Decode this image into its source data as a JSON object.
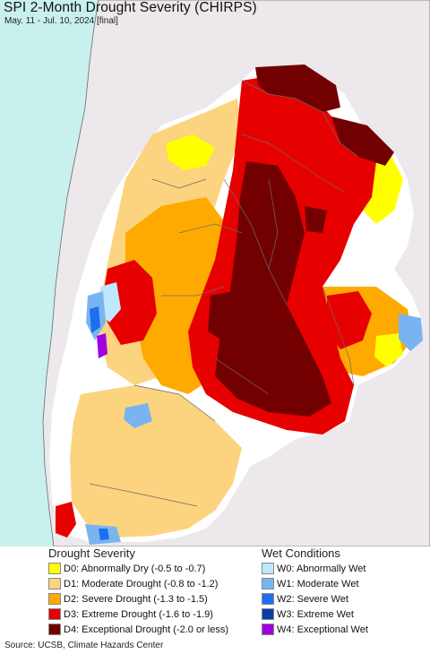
{
  "map": {
    "title": "SPI 2-Month Drought Severity (CHIRPS)",
    "subtitle": "May. 11 - Jul. 10, 2024 [final]",
    "colors": {
      "ocean": "#c8f0ec",
      "land_outside": "#ece8ec",
      "no_data": "#ffffff",
      "border": "#6b6b6b"
    }
  },
  "legend": {
    "drought": {
      "heading": "Drought Severity",
      "items": [
        {
          "label": "D0: Abnormally Dry (-0.5 to -0.7)",
          "color": "#ffff00"
        },
        {
          "label": "D1: Moderate Drought (-0.8 to -1.2)",
          "color": "#fcd37f"
        },
        {
          "label": "D2: Severe Drought (-1.3 to -1.5)",
          "color": "#ffaa00"
        },
        {
          "label": "D3: Extreme Drought (-1.6 to -1.9)",
          "color": "#e60000"
        },
        {
          "label": "D4: Exceptional Drought (-2.0 or less)",
          "color": "#730000"
        }
      ]
    },
    "wet": {
      "heading": "Wet Conditions",
      "items": [
        {
          "label": "W0: Abnormally Wet",
          "color": "#bfe8ff"
        },
        {
          "label": "W1: Moderate Wet",
          "color": "#7ab4f0"
        },
        {
          "label": "W2: Severe Wet",
          "color": "#1e6ef0"
        },
        {
          "label": "W3: Extreme Wet",
          "color": "#0a3ca8"
        },
        {
          "label": "W4: Exceptional Wet",
          "color": "#a000e0"
        }
      ]
    }
  },
  "footer": {
    "source": "Source: UCSB, Climate Hazards Center"
  }
}
